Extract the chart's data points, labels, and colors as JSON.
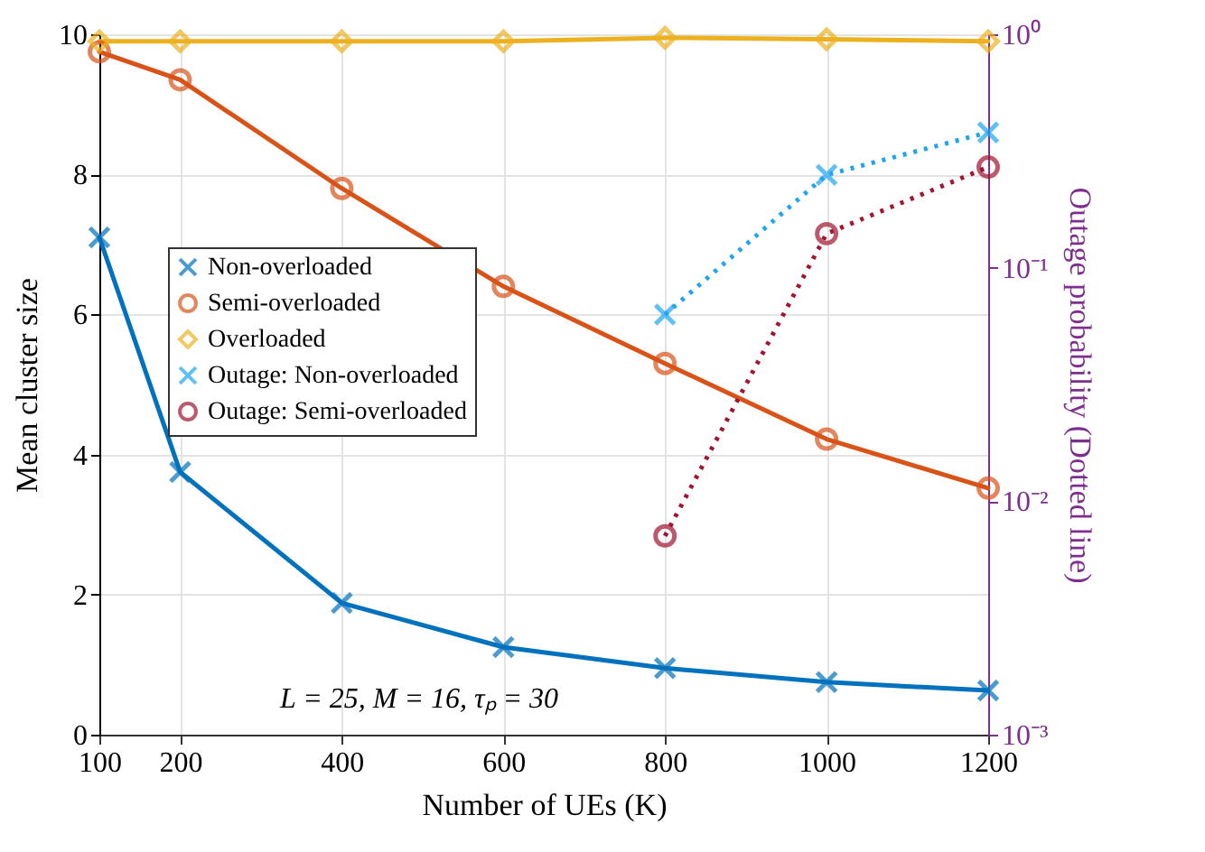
{
  "chart_data": {
    "type": "line",
    "xlabel": "Number of UEs (K)",
    "ylabel": "Mean cluster size",
    "y2label": "Outage probability (Dotted line)",
    "x": [
      100,
      200,
      400,
      600,
      800,
      1000,
      1200
    ],
    "xlim": [
      100,
      1200
    ],
    "xticks": [
      100,
      200,
      400,
      600,
      800,
      1000,
      1200
    ],
    "ylim": [
      0,
      10
    ],
    "yticks": [
      0,
      2,
      4,
      6,
      8,
      10
    ],
    "y2lim": [
      0.001,
      1
    ],
    "y2ticks": [
      {
        "value": 1,
        "label": "10⁰"
      },
      {
        "value": 0.1,
        "label": "10⁻¹"
      },
      {
        "value": 0.01,
        "label": "10⁻²"
      },
      {
        "value": 0.001,
        "label": "10⁻³"
      }
    ],
    "log": "y2",
    "grid": true,
    "legend": "left",
    "annotations": [
      "L = 25, M = 16, τₚ = 30"
    ],
    "series": [
      {
        "name": "Non-overloaded",
        "color": "#0072bd",
        "marker": "cross",
        "line_style": "solid",
        "values": [
          7.1,
          3.75,
          1.88,
          1.25,
          0.95,
          0.75,
          0.63
        ]
      },
      {
        "name": "Semi-overloaded",
        "color": "#d95319",
        "marker": "circle",
        "line_style": "solid",
        "values": [
          9.75,
          9.35,
          7.8,
          6.4,
          5.3,
          4.22,
          3.52
        ]
      },
      {
        "name": "Overloaded",
        "color": "#edb120",
        "marker": "diamond",
        "line_style": "solid",
        "values": [
          9.9,
          9.9,
          9.9,
          9.9,
          9.95,
          9.93,
          9.9
        ]
      },
      {
        "name": "Outage: Non-overloaded",
        "color": "#1ea5f0",
        "marker": "cross",
        "line_style": "dotted",
        "axis": "y2",
        "values": [
          null,
          null,
          null,
          null,
          0.063,
          0.25,
          0.38
        ]
      },
      {
        "name": "Outage: Semi-overloaded",
        "color": "#a2142f",
        "marker": "circle",
        "line_style": "dotted",
        "axis": "y2",
        "values": [
          null,
          null,
          null,
          null,
          0.0071,
          0.14,
          0.27
        ]
      }
    ]
  }
}
